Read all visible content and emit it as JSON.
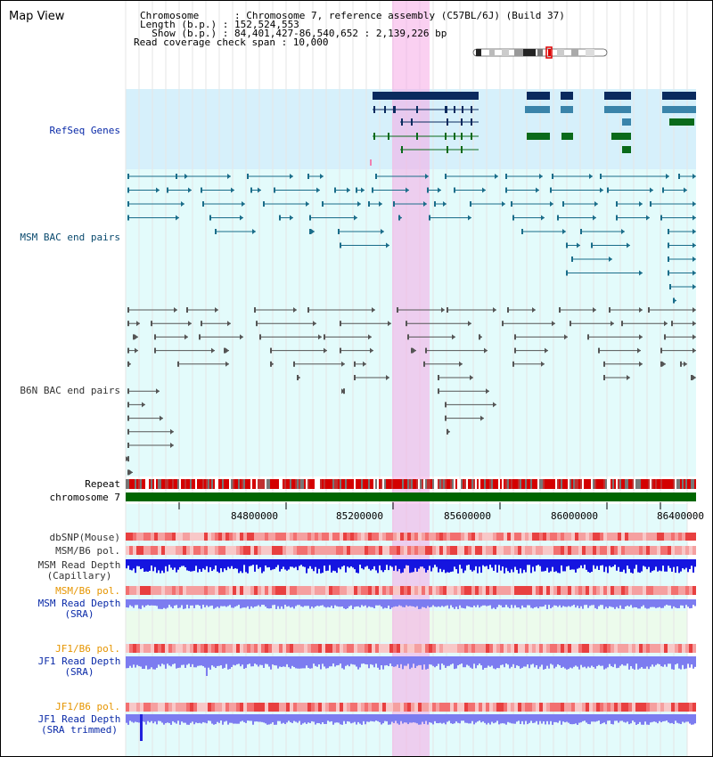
{
  "window": {
    "title": "Map View"
  },
  "header": {
    "chromosome_label": "Chromosome      : Chromosome 7, reference assembly (C57BL/6J) (Build 37)",
    "length_label": "Length (b.p.) : 152,524,553",
    "show_label": "  Show (b.p.) : 84,401,427-86,540,652 : 2,139,226 bp",
    "coverage_label": "Read coverage check span : 10,000"
  },
  "tracks": {
    "refseq": "RefSeq Genes",
    "msm_bac": "MSM BAC end pairs",
    "b6n_bac": "B6N BAC end pairs",
    "repeat": "Repeat",
    "chromosome": "chromosome 7",
    "dbsnp": "dbSNP(Mouse)",
    "msm_pol": "MSM/B6 pol.",
    "msm_depth_cap_1": "MSM Read Depth",
    "msm_depth_cap_2": "(Capillary)",
    "msm_pol_sra": "MSM/B6 pol.",
    "msm_depth_sra_1": "MSM Read Depth",
    "msm_depth_sra_2": "(SRA)",
    "jf1_pol": "JF1/B6 pol.",
    "jf1_depth_1": "JF1 Read Depth",
    "jf1_depth_2": "(SRA)",
    "jf1_pol_trim": "JF1/B6 pol.",
    "jf1_trim_1": "JF1 Read Depth",
    "jf1_trim_2": "(SRA trimmed)"
  },
  "axis": {
    "ticks": [
      "84800000",
      "85200000",
      "85600000",
      "86000000",
      "86400000"
    ]
  },
  "colors": {
    "highlight": "#f9d4f4",
    "refseq_bg": "#d6f0fb",
    "bac_bg": "#e3fbfb",
    "gene_dark": "#0a2a5e",
    "gene_mid": "#3a84aa",
    "gene_green": "#0a6a1a",
    "msm_pair": "#1a6d8a",
    "b6n_pair": "#555555",
    "depth_cap": "#1515e0",
    "depth_sra": "#7c7cf0",
    "label_blue": "#0a2aa8",
    "label_orange": "#e69500",
    "chrom_green": "#006600"
  }
}
